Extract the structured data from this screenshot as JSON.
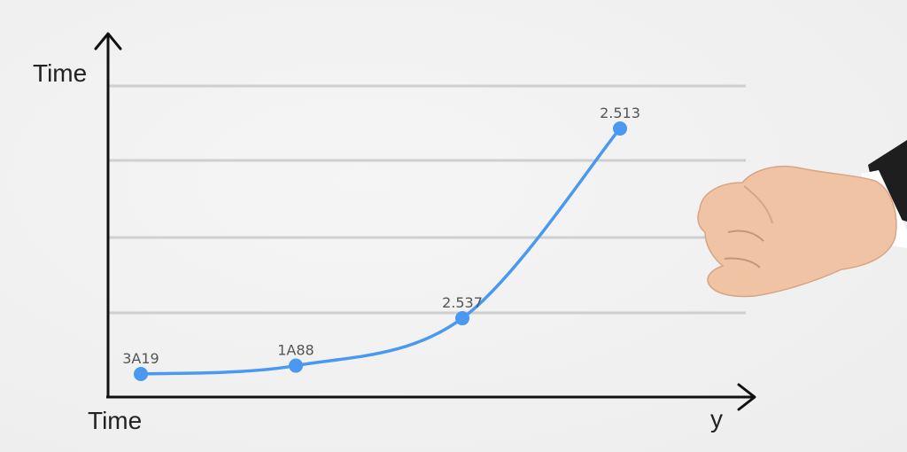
{
  "chart_data": {
    "type": "line",
    "y_axis_title": "Time",
    "x_axis_title": "Time",
    "x_axis_end_label": "y",
    "grid": true,
    "line_color": "#4a98f0",
    "points": [
      {
        "label": "3A19",
        "value": 1.0
      },
      {
        "label": "1A88",
        "value": 1.3
      },
      {
        "label": "2.537",
        "value": 3.0
      },
      {
        "label": "2.513",
        "value": 9.8
      }
    ]
  }
}
